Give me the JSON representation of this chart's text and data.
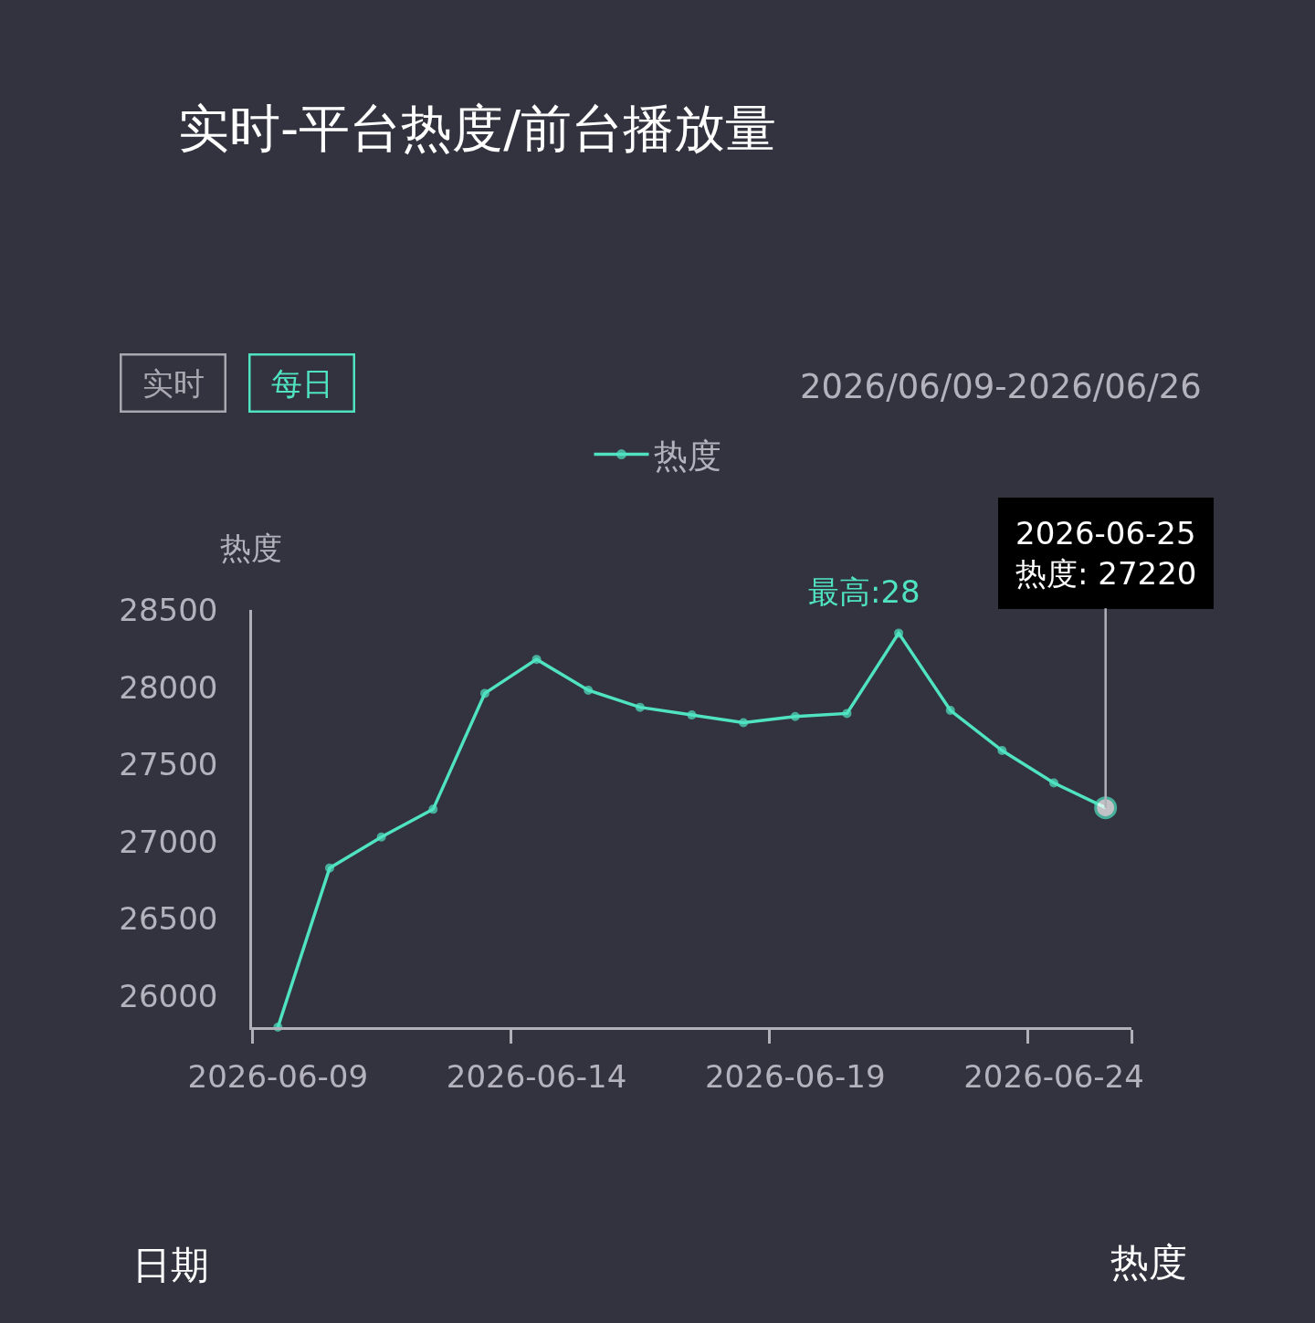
{
  "chart_data": {
    "type": "line",
    "title": "实时-平台热度/前台播放量",
    "subtitle": "2026/06/09-2026/06/26",
    "ylabel": "热度",
    "categories": [
      "2026-06-09",
      null,
      null,
      null,
      null,
      "2026-06-14",
      null,
      null,
      null,
      null,
      "2026-06-19",
      null,
      null,
      null,
      null,
      "2026-06-24",
      null
    ],
    "series": [
      {
        "name": "热度",
        "color": "#4fe3c1",
        "values": [
          25800,
          26830,
          27030,
          27210,
          27960,
          28180,
          27980,
          27870,
          27820,
          27770,
          27810,
          27830,
          28350,
          27850,
          27590,
          27380,
          27220
        ]
      }
    ],
    "ylim": [
      25800,
      28500
    ],
    "yticks": [
      26000,
      26500,
      27000,
      27500,
      28000,
      28500
    ],
    "legend": "top",
    "marker": "circle",
    "line_style": "solid",
    "annotations": [
      "实时",
      "每日",
      "最高:28",
      {
        "text": "2026-06-25\n热度: 27220",
        "y": 27220
      },
      "日期",
      "热度"
    ]
  }
}
